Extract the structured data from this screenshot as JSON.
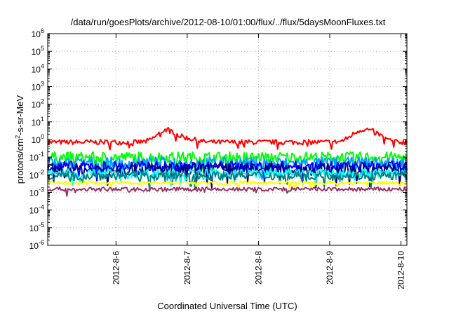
{
  "chart_data": {
    "type": "line",
    "title": "/data/run/goesPlots/archive/2012-08-10/01:00/flux/../flux/5daysMoonFluxes.txt",
    "xlabel": "Coordinated Universal Time (UTC)",
    "ylabel": {
      "prefix": "protons/cm",
      "sup": "2",
      "suffix": "-s-sr-MeV"
    },
    "yscale": "log",
    "ylim": [
      1e-06,
      1000000.0
    ],
    "y_ticks": [
      {
        "base": "10",
        "exp": "-6",
        "value": 1e-06
      },
      {
        "base": "10",
        "exp": "-5",
        "value": 1e-05
      },
      {
        "base": "10",
        "exp": "-4",
        "value": 0.0001
      },
      {
        "base": "10",
        "exp": "-3",
        "value": 0.001
      },
      {
        "base": "10",
        "exp": "-2",
        "value": 0.01
      },
      {
        "base": "10",
        "exp": "-1",
        "value": 0.1
      },
      {
        "base": "10",
        "exp": "0",
        "value": 1.0
      },
      {
        "base": "10",
        "exp": "1",
        "value": 10.0
      },
      {
        "base": "10",
        "exp": "2",
        "value": 100.0
      },
      {
        "base": "10",
        "exp": "3",
        "value": 1000.0
      },
      {
        "base": "10",
        "exp": "4",
        "value": 10000.0
      },
      {
        "base": "10",
        "exp": "5",
        "value": 100000.0
      },
      {
        "base": "10",
        "exp": "6",
        "value": 1000000.0
      }
    ],
    "xlim": [
      "2012-08-05T01:00",
      "2012-08-10T02:00"
    ],
    "x_ticks": [
      {
        "label": "2012-8-6",
        "value": "2012-08-06T00:00"
      },
      {
        "label": "2012-8-7",
        "value": "2012-08-07T00:00"
      },
      {
        "label": "2012-8-8",
        "value": "2012-08-08T00:00"
      },
      {
        "label": "2012-8-9",
        "value": "2012-08-09T00:00"
      },
      {
        "label": "2012-8-10",
        "value": "2012-08-10T00:00"
      }
    ],
    "grid": true,
    "series": [
      {
        "color": "#ff0000",
        "base": 0.7,
        "noise": 0.14,
        "bumps": [
          [
            "2012-08-06T17:00",
            3.5
          ],
          [
            "2012-08-07T00:00",
            1.1
          ],
          [
            "2012-08-09T10:00",
            2.5
          ],
          [
            "2012-08-09T15:00",
            2.0
          ]
        ]
      },
      {
        "color": "#00ff00",
        "base": 0.1,
        "noise": 0.3,
        "bumps": []
      },
      {
        "color": "#00a0ff",
        "base": 0.045,
        "noise": 0.35,
        "bumps": []
      },
      {
        "color": "#0000ff",
        "base": 0.03,
        "noise": 0.3,
        "bumps": []
      },
      {
        "color": "#000080",
        "base": 0.02,
        "noise": 0.35,
        "bumps": []
      },
      {
        "color": "#00ffff",
        "base": 0.012,
        "noise": 0.25,
        "bumps": []
      },
      {
        "color": "#008080",
        "base": 0.009,
        "noise": 0.25,
        "bumps": []
      },
      {
        "color": "#ffff00",
        "base": 0.0035,
        "noise": 0.1,
        "bumps": []
      },
      {
        "color": "#993366",
        "base": 0.0015,
        "noise": 0.12,
        "bumps": []
      }
    ]
  }
}
